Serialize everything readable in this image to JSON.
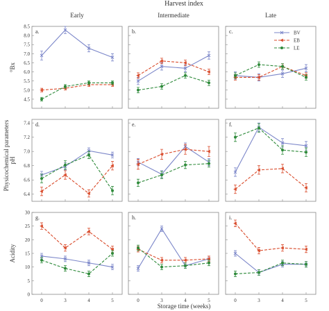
{
  "figure": {
    "super_title": "Harvest index",
    "y_super_label": "Physicochemical parameters",
    "x_super_label": "Storage time (weeks)",
    "column_titles": [
      "Early",
      "Intermediate",
      "Late"
    ],
    "row_labels": [
      "°Bx",
      "pH",
      "Acidity"
    ],
    "x_ticks": [
      "0",
      "3",
      "4",
      "5"
    ],
    "legend": [
      {
        "name": "BV",
        "color": "#7b86c9",
        "dash": "solid",
        "marker": "x"
      },
      {
        "name": "EB",
        "color": "#d94a2a",
        "dash": "dashed",
        "marker": "triangle"
      },
      {
        "name": "LE",
        "color": "#2e8a3a",
        "dash": "dashed",
        "marker": "circle"
      }
    ],
    "legend_panel": "c"
  },
  "chart_data": [
    {
      "type": "line",
      "panel": "a.",
      "row": "°Bx",
      "column": "Early",
      "x": [
        "0",
        "3",
        "4",
        "5"
      ],
      "ylim": [
        4,
        8.5
      ],
      "yticks": [
        4.5,
        5.0,
        5.5,
        6.0,
        6.5,
        7.0,
        7.5,
        8.0,
        8.5
      ],
      "ytick_labels": [
        "4.5",
        "5.0",
        "5.5",
        "6.0",
        "6.5",
        "7.0",
        "7.5",
        "8.0",
        "8.5"
      ],
      "series": [
        {
          "name": "BV",
          "values": [
            6.9,
            8.3,
            7.3,
            6.8
          ],
          "errors": [
            0.25,
            0.2,
            0.2,
            0.2
          ]
        },
        {
          "name": "EB",
          "values": [
            5.0,
            5.1,
            5.3,
            5.3
          ],
          "errors": [
            0.1,
            0.1,
            0.1,
            0.1
          ]
        },
        {
          "name": "LE",
          "values": [
            4.5,
            5.2,
            5.4,
            5.4
          ],
          "errors": [
            0.1,
            0.1,
            0.1,
            0.1
          ]
        }
      ]
    },
    {
      "type": "line",
      "panel": "b.",
      "row": "°Bx",
      "column": "Intermediate",
      "x": [
        "0",
        "3",
        "4",
        "5"
      ],
      "ylim": [
        4,
        8.5
      ],
      "series": [
        {
          "name": "BV",
          "values": [
            5.5,
            6.3,
            6.2,
            6.9
          ],
          "errors": [
            0.2,
            0.2,
            0.2,
            0.2
          ]
        },
        {
          "name": "EB",
          "values": [
            5.8,
            6.6,
            6.5,
            6.0
          ],
          "errors": [
            0.15,
            0.15,
            0.15,
            0.15
          ]
        },
        {
          "name": "LE",
          "values": [
            5.0,
            5.2,
            5.8,
            5.4
          ],
          "errors": [
            0.15,
            0.15,
            0.15,
            0.15
          ]
        }
      ]
    },
    {
      "type": "line",
      "panel": "c.",
      "row": "°Bx",
      "column": "Late",
      "x": [
        "0",
        "3",
        "4",
        "5"
      ],
      "ylim": [
        4,
        8.5
      ],
      "series": [
        {
          "name": "BV",
          "values": [
            5.8,
            5.7,
            5.9,
            6.2
          ],
          "errors": [
            0.2,
            0.2,
            0.2,
            0.2
          ]
        },
        {
          "name": "EB",
          "values": [
            5.7,
            5.7,
            6.3,
            5.8
          ],
          "errors": [
            0.15,
            0.15,
            0.15,
            0.15
          ]
        },
        {
          "name": "LE",
          "values": [
            5.8,
            6.4,
            6.3,
            5.7
          ],
          "errors": [
            0.15,
            0.15,
            0.15,
            0.15
          ]
        }
      ]
    },
    {
      "type": "line",
      "panel": "d.",
      "row": "pH",
      "column": "Early",
      "x": [
        "0",
        "3",
        "4",
        "5"
      ],
      "ylim": [
        6.3,
        7.45
      ],
      "yticks": [
        6.4,
        6.6,
        6.8,
        7.0,
        7.2,
        7.4
      ],
      "ytick_labels": [
        "6.4",
        "6.6",
        "6.8",
        "7.0",
        "7.2",
        "7.4"
      ],
      "series": [
        {
          "name": "BV",
          "values": [
            6.67,
            6.79,
            7.01,
            6.95
          ],
          "errors": [
            0.05,
            0.05,
            0.04,
            0.04
          ]
        },
        {
          "name": "EB",
          "values": [
            6.44,
            6.67,
            6.41,
            6.8
          ],
          "errors": [
            0.06,
            0.06,
            0.05,
            0.06
          ]
        },
        {
          "name": "LE",
          "values": [
            6.62,
            6.81,
            6.95,
            6.45
          ],
          "errors": [
            0.06,
            0.06,
            0.05,
            0.06
          ]
        }
      ]
    },
    {
      "type": "line",
      "panel": "e.",
      "row": "pH",
      "column": "Intermediate",
      "x": [
        "0",
        "3",
        "4",
        "5"
      ],
      "ylim": [
        6.3,
        7.45
      ],
      "series": [
        {
          "name": "BV",
          "values": [
            6.85,
            6.68,
            7.07,
            6.85
          ],
          "errors": [
            0.05,
            0.05,
            0.05,
            0.05
          ]
        },
        {
          "name": "EB",
          "values": [
            6.82,
            6.96,
            7.03,
            7.0
          ],
          "errors": [
            0.07,
            0.07,
            0.07,
            0.07
          ]
        },
        {
          "name": "LE",
          "values": [
            6.56,
            6.67,
            6.81,
            6.83
          ],
          "errors": [
            0.05,
            0.05,
            0.05,
            0.05
          ]
        }
      ]
    },
    {
      "type": "line",
      "panel": "f.",
      "row": "pH",
      "column": "Late",
      "x": [
        "0",
        "3",
        "4",
        "5"
      ],
      "ylim": [
        6.3,
        7.45
      ],
      "series": [
        {
          "name": "BV",
          "values": [
            6.71,
            7.34,
            7.12,
            7.08
          ],
          "errors": [
            0.06,
            0.06,
            0.06,
            0.06
          ]
        },
        {
          "name": "EB",
          "values": [
            6.47,
            6.74,
            6.76,
            6.49
          ],
          "errors": [
            0.06,
            0.06,
            0.06,
            0.06
          ]
        },
        {
          "name": "LE",
          "values": [
            7.2,
            7.33,
            7.02,
            6.99
          ],
          "errors": [
            0.06,
            0.06,
            0.06,
            0.06
          ]
        }
      ]
    },
    {
      "type": "line",
      "panel": "g.",
      "row": "Acidity",
      "column": "Early",
      "x": [
        "0",
        "3",
        "4",
        "5"
      ],
      "ylim": [
        0,
        30
      ],
      "yticks": [
        0,
        5,
        10,
        15,
        20,
        25,
        30
      ],
      "ytick_labels": [
        "0",
        "5",
        "10",
        "15",
        "20",
        "25",
        "30"
      ],
      "series": [
        {
          "name": "BV",
          "values": [
            14,
            13,
            11.5,
            10
          ],
          "errors": [
            1,
            1,
            1,
            1
          ]
        },
        {
          "name": "EB",
          "values": [
            25,
            17,
            23,
            16.5
          ],
          "errors": [
            1.2,
            1.2,
            1.2,
            1.2
          ]
        },
        {
          "name": "LE",
          "values": [
            12.5,
            9.5,
            7.5,
            15
          ],
          "errors": [
            1,
            1,
            1,
            1
          ]
        }
      ]
    },
    {
      "type": "line",
      "panel": "h.",
      "row": "Acidity",
      "column": "Intermediate",
      "x": [
        "0",
        "3",
        "4",
        "5"
      ],
      "ylim": [
        0,
        30
      ],
      "series": [
        {
          "name": "BV",
          "values": [
            9.5,
            24,
            10.5,
            13
          ],
          "errors": [
            1,
            1,
            1,
            1
          ]
        },
        {
          "name": "EB",
          "values": [
            16.5,
            12.5,
            12.5,
            13
          ],
          "errors": [
            1,
            1,
            1,
            1
          ]
        },
        {
          "name": "LE",
          "values": [
            17,
            10,
            10.5,
            11.5
          ],
          "errors": [
            1,
            1,
            1,
            1
          ]
        }
      ]
    },
    {
      "type": "line",
      "panel": "i.",
      "row": "Acidity",
      "column": "Late",
      "x": [
        "0",
        "3",
        "4",
        "5"
      ],
      "ylim": [
        0,
        30
      ],
      "series": [
        {
          "name": "BV",
          "values": [
            15,
            8,
            11,
            11
          ],
          "errors": [
            1,
            1,
            1,
            1
          ]
        },
        {
          "name": "EB",
          "values": [
            26,
            16,
            17,
            16.5
          ],
          "errors": [
            1.2,
            1.2,
            1.2,
            1.2
          ]
        },
        {
          "name": "LE",
          "values": [
            7.5,
            8,
            11.5,
            11
          ],
          "errors": [
            1,
            1,
            1,
            1
          ]
        }
      ]
    }
  ]
}
